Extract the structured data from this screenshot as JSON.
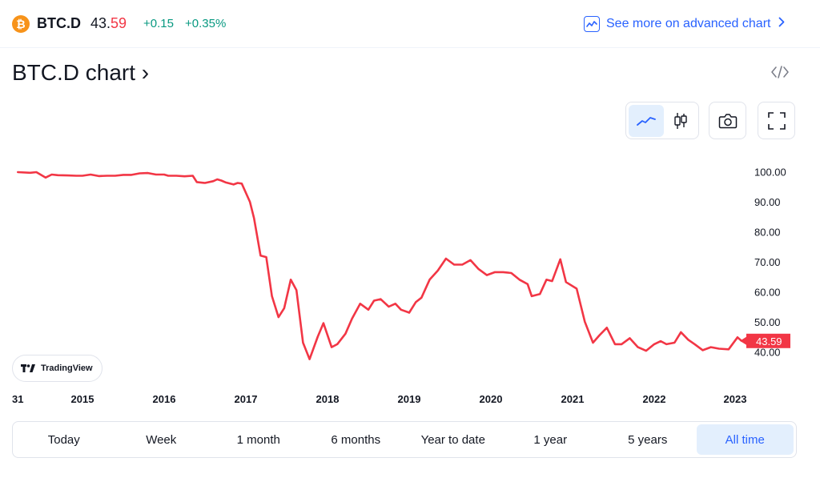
{
  "header": {
    "coin_icon_glyph": "₿",
    "symbol": "BTC.D",
    "price_head": "43.",
    "price_tail": "59",
    "change": "+0.15",
    "change_pct": "+0.35%",
    "advanced_link": "See more on advanced chart",
    "advanced_icon": "chart-line-icon"
  },
  "chart_title": "BTC.D chart ›",
  "toolbar": {
    "line_icon": "line-chart-icon",
    "candle_icon": "candlestick-icon",
    "camera_icon": "camera-icon",
    "fullscreen_icon": "fullscreen-icon",
    "embed_icon": "embed-code-icon"
  },
  "badge": {
    "label": "TradingView"
  },
  "ranges": [
    {
      "label": "Today",
      "active": false
    },
    {
      "label": "Week",
      "active": false
    },
    {
      "label": "1 month",
      "active": false
    },
    {
      "label": "6 months",
      "active": false
    },
    {
      "label": "Year to date",
      "active": false
    },
    {
      "label": "1 year",
      "active": false
    },
    {
      "label": "5 years",
      "active": false
    },
    {
      "label": "All time",
      "active": true
    }
  ],
  "chart_data": {
    "type": "line",
    "x_ticks": [
      "31",
      "2015",
      "2016",
      "2017",
      "2018",
      "2019",
      "2020",
      "2021",
      "2022",
      "2023"
    ],
    "y_ticks": [
      "100.00",
      "90.00",
      "80.00",
      "70.00",
      "60.00",
      "50.00",
      "40.00"
    ],
    "ylim": [
      35,
      103
    ],
    "last_value_label": "43.59",
    "line_color": "#f23645",
    "grid": false,
    "series": [
      {
        "x": [
          2013.95,
          2014.15,
          2014.25,
          2014.4,
          2014.5,
          2014.6,
          2014.75,
          2014.9,
          2015.0,
          2015.1,
          2015.2,
          2015.3,
          2015.4,
          2015.5,
          2015.6,
          2015.7,
          2015.8,
          2015.9,
          2016.0,
          2016.05,
          2016.15,
          2016.25,
          2016.35,
          2016.4,
          2016.5,
          2016.6,
          2016.65,
          2016.7,
          2016.75,
          2016.85,
          2016.9,
          2016.95,
          2017.05,
          2017.1,
          2017.18,
          2017.25,
          2017.32,
          2017.4,
          2017.47,
          2017.55,
          2017.62,
          2017.7,
          2017.78,
          2017.88,
          2017.95,
          2018.05,
          2018.12,
          2018.22,
          2018.3,
          2018.4,
          2018.5,
          2018.57,
          2018.65,
          2018.75,
          2018.83,
          2018.9,
          2019.0,
          2019.08,
          2019.15,
          2019.25,
          2019.35,
          2019.45,
          2019.55,
          2019.65,
          2019.75,
          2019.85,
          2019.95,
          2020.05,
          2020.15,
          2020.25,
          2020.35,
          2020.45,
          2020.5,
          2020.6,
          2020.68,
          2020.75,
          2020.85,
          2020.92,
          2021.05,
          2021.15,
          2021.25,
          2021.33,
          2021.42,
          2021.52,
          2021.6,
          2021.7,
          2021.8,
          2021.9,
          2022.0,
          2022.08,
          2022.15,
          2022.25,
          2022.33,
          2022.42,
          2022.5,
          2022.6,
          2022.7,
          2022.8,
          2022.92,
          2023.03,
          2023.08
        ],
        "y": [
          99.8,
          99.6,
          99.8,
          98.0,
          99.0,
          98.8,
          98.7,
          98.6,
          98.6,
          99.0,
          98.5,
          98.6,
          98.6,
          98.9,
          98.9,
          99.4,
          99.5,
          99.0,
          99.0,
          98.6,
          98.6,
          98.4,
          98.6,
          96.5,
          96.2,
          96.8,
          97.4,
          97.0,
          96.4,
          95.7,
          96.2,
          96.0,
          89.9,
          84.5,
          72.0,
          71.5,
          58.5,
          51.5,
          54.5,
          64.0,
          60.5,
          43.0,
          37.5,
          45.0,
          49.5,
          41.5,
          42.5,
          46.0,
          51.0,
          56.0,
          54.0,
          57.0,
          57.5,
          55.0,
          56.0,
          54.0,
          53.0,
          56.5,
          58.0,
          64.0,
          67.0,
          71.0,
          69.0,
          69.0,
          70.5,
          67.5,
          65.5,
          66.5,
          66.5,
          66.2,
          64.0,
          62.5,
          58.5,
          59.2,
          64.0,
          63.5,
          70.8,
          63.2,
          61.0,
          50.0,
          43.0,
          45.5,
          48.0,
          42.5,
          42.5,
          44.5,
          41.5,
          40.3,
          42.5,
          43.5,
          42.5,
          43.0,
          46.5,
          44.0,
          42.5,
          40.5,
          41.5,
          41.0,
          40.8,
          44.8,
          43.59
        ]
      }
    ]
  }
}
